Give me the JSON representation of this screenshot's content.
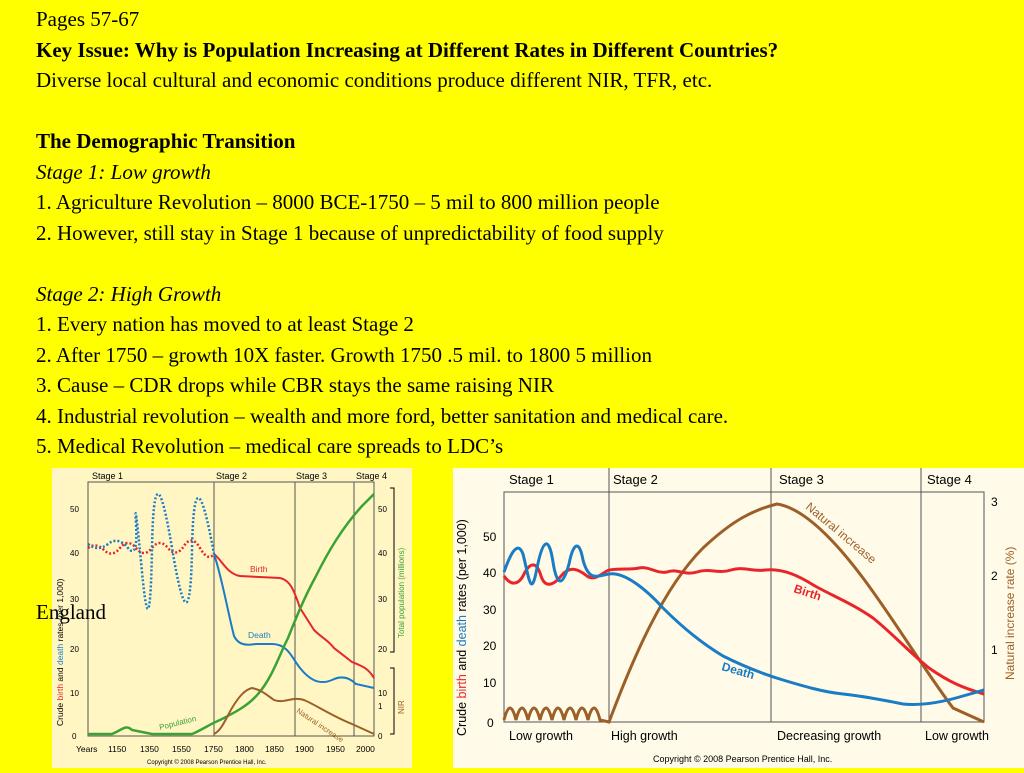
{
  "text": {
    "pages": "Pages 57-67",
    "key_issue": "Key Issue: Why is Population Increasing at Different Rates in Different Countries?",
    "intro": "Diverse local cultural and economic conditions produce different NIR, TFR, etc.",
    "section_title": "The Demographic Transition",
    "stage1_title": "Stage 1: Low growth",
    "stage1_items": [
      "1. Agriculture Revolution – 8000 BCE-1750 – 5 mil to 800 million people",
      "2. However, still stay in Stage 1 because of unpredictability of food supply"
    ],
    "stage2_title": "Stage 2: High Growth",
    "stage2_items": [
      "1. Every nation has moved to at least Stage 2",
      "2. After 1750 – growth 10X faster. Growth 1750 .5 mil. to 1800 5 million",
      "3. Cause – CDR drops while CBR stays the same raising NIR",
      "4. Industrial revolution – wealth and more ford, better sanitation and medical care.",
      "5. Medical Revolution – medical care spreads to LDC’s"
    ],
    "caption": "England"
  },
  "colors": {
    "background": "#ffff00",
    "birth": "#e8262a",
    "death": "#1a7cc4",
    "population": "#3aa335",
    "natural_increase": "#9c5f28"
  },
  "chart_data": [
    {
      "type": "line",
      "stages": [
        "Stage 1",
        "Stage 2",
        "Stage 3",
        "Stage 4"
      ],
      "x_ticks": [
        "Years",
        "1150",
        "1350",
        "1550",
        "1750",
        "1800",
        "1850",
        "1900",
        "1950",
        "2000"
      ],
      "ylabel_parts": [
        "Crude ",
        "birth",
        " and ",
        "death",
        " rates (per 1,000)"
      ],
      "y_ticks": [
        0,
        10,
        20,
        30,
        40,
        50
      ],
      "y2label": "Total population (millions)",
      "y2_ticks": [
        10,
        20,
        30,
        40,
        50
      ],
      "y3label": "NIR",
      "y3_ticks": [
        0,
        1
      ],
      "series": [
        {
          "name": "Birth"
        },
        {
          "name": "Death"
        },
        {
          "name": "Population"
        },
        {
          "name": "Natural increase"
        }
      ],
      "copyright": "Copyright © 2008 Pearson Prentice Hall, Inc."
    },
    {
      "type": "line",
      "stages": [
        "Stage 1",
        "Stage 2",
        "Stage 3",
        "Stage 4"
      ],
      "x_labels": [
        "Low growth",
        "High growth",
        "Decreasing growth",
        "Low growth"
      ],
      "ylabel_parts": [
        "Crude ",
        "birth",
        " and ",
        "death",
        " rates (per 1,000)"
      ],
      "y_ticks": [
        0,
        10,
        20,
        30,
        40,
        50
      ],
      "y2label": "Natural increase rate (%)",
      "y2_ticks": [
        1,
        2,
        3
      ],
      "series": [
        {
          "name": "Birth"
        },
        {
          "name": "Death"
        },
        {
          "name": "Natural increase"
        }
      ],
      "copyright": "Copyright © 2008 Pearson Prentice Hall, Inc."
    }
  ]
}
